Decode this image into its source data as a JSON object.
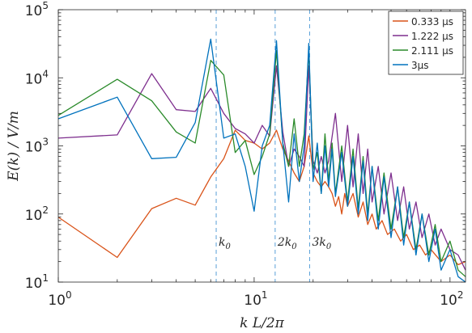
{
  "chart_data": {
    "type": "line",
    "xscale": "log",
    "yscale": "log",
    "xlim": [
      1,
      120
    ],
    "ylim": [
      10,
      100000
    ],
    "xlabel": "k L/2π",
    "ylabel": "E(k) / V/m",
    "x_ticks": [
      {
        "value": 1,
        "mant": "10",
        "exp": "0"
      },
      {
        "value": 10,
        "mant": "10",
        "exp": "1"
      },
      {
        "value": 100,
        "mant": "10",
        "exp": "2"
      }
    ],
    "y_ticks": [
      {
        "value": 10,
        "mant": "10",
        "exp": "1"
      },
      {
        "value": 100,
        "mant": "10",
        "exp": "2"
      },
      {
        "value": 1000,
        "mant": "10",
        "exp": "3"
      },
      {
        "value": 10000,
        "mant": "10",
        "exp": "4"
      },
      {
        "value": 100000,
        "mant": "10",
        "exp": "5"
      }
    ],
    "vlines": [
      {
        "x": 6.4,
        "label_main": "k",
        "label_sub": "0"
      },
      {
        "x": 12.8,
        "label_main": "2k",
        "label_sub": "0"
      },
      {
        "x": 19.2,
        "label_main": "3k",
        "label_sub": "0"
      }
    ],
    "series": [
      {
        "name": "0.333 μs",
        "color": "#d95319",
        "x": [
          1,
          2,
          3,
          4,
          5,
          6,
          7,
          8,
          9,
          10,
          11,
          12,
          13,
          14,
          15,
          16,
          17,
          18,
          19,
          20,
          21,
          22,
          23,
          24,
          25,
          26,
          27,
          28,
          29,
          30,
          32,
          34,
          36,
          38,
          40,
          42,
          45,
          48,
          52,
          56,
          60,
          65,
          70,
          75,
          80,
          90,
          100,
          110,
          120
        ],
        "y": [
          90,
          23,
          120,
          170,
          135,
          350,
          650,
          1700,
          1200,
          1100,
          900,
          1100,
          1700,
          900,
          600,
          400,
          300,
          500,
          1400,
          400,
          300,
          250,
          300,
          250,
          200,
          130,
          180,
          100,
          200,
          130,
          200,
          90,
          150,
          70,
          100,
          60,
          80,
          50,
          60,
          40,
          50,
          30,
          35,
          25,
          30,
          20,
          25,
          18,
          20
        ]
      },
      {
        "name": "1.222 μs",
        "color": "#7e2f8e",
        "x": [
          1,
          2,
          3,
          4,
          5,
          6,
          7,
          8,
          9,
          10,
          11,
          12,
          13,
          14,
          15,
          16,
          17,
          18,
          19,
          20,
          21,
          22,
          23,
          24,
          26,
          28,
          30,
          32,
          34,
          36,
          38,
          40,
          43,
          46,
          50,
          54,
          58,
          62,
          67,
          72,
          78,
          84,
          90,
          100,
          110,
          120
        ],
        "y": [
          1300,
          1450,
          11500,
          3400,
          3200,
          7000,
          3000,
          1800,
          1500,
          1100,
          2000,
          1400,
          15000,
          1600,
          500,
          900,
          700,
          500,
          15000,
          600,
          400,
          700,
          400,
          600,
          3000,
          300,
          2000,
          250,
          1500,
          200,
          900,
          150,
          500,
          100,
          400,
          80,
          250,
          60,
          150,
          45,
          100,
          35,
          60,
          30,
          25,
          15
        ]
      },
      {
        "name": "2.111 μs",
        "color": "#2a8a2a",
        "x": [
          1,
          2,
          3,
          4,
          5,
          6,
          7,
          8,
          9,
          10,
          11,
          12,
          13,
          14,
          15,
          16,
          17,
          18,
          19,
          20,
          21,
          22,
          23,
          24,
          25,
          26,
          28,
          30,
          32,
          34,
          36,
          38,
          40,
          43,
          46,
          50,
          54,
          58,
          62,
          67,
          72,
          78,
          84,
          90,
          100,
          110,
          120
        ],
        "y": [
          2800,
          9500,
          4600,
          1600,
          1100,
          18000,
          11000,
          800,
          1200,
          380,
          700,
          1500,
          25000,
          1100,
          500,
          2500,
          500,
          1500,
          25000,
          450,
          800,
          200,
          1500,
          300,
          1100,
          200,
          1000,
          150,
          900,
          120,
          700,
          100,
          500,
          80,
          400,
          60,
          250,
          45,
          150,
          30,
          100,
          25,
          70,
          20,
          40,
          15,
          12
        ]
      },
      {
        "name": "3μs",
        "color": "#0072bd",
        "x": [
          1,
          2,
          3,
          4,
          5,
          6,
          7,
          8,
          9,
          10,
          11,
          12,
          13,
          14,
          15,
          16,
          17,
          18,
          19,
          20,
          21,
          22,
          23,
          24,
          25,
          26,
          28,
          30,
          32,
          34,
          36,
          38,
          40,
          43,
          46,
          50,
          54,
          58,
          62,
          67,
          72,
          78,
          84,
          90,
          100,
          110,
          120
        ],
        "y": [
          2500,
          5200,
          650,
          680,
          2200,
          37000,
          1300,
          1500,
          500,
          110,
          1000,
          2000,
          35000,
          1100,
          150,
          1500,
          300,
          1000,
          32000,
          300,
          1100,
          200,
          1000,
          250,
          900,
          180,
          800,
          130,
          700,
          100,
          600,
          80,
          500,
          60,
          350,
          45,
          250,
          35,
          150,
          25,
          100,
          20,
          60,
          15,
          30,
          12,
          10
        ]
      }
    ]
  }
}
